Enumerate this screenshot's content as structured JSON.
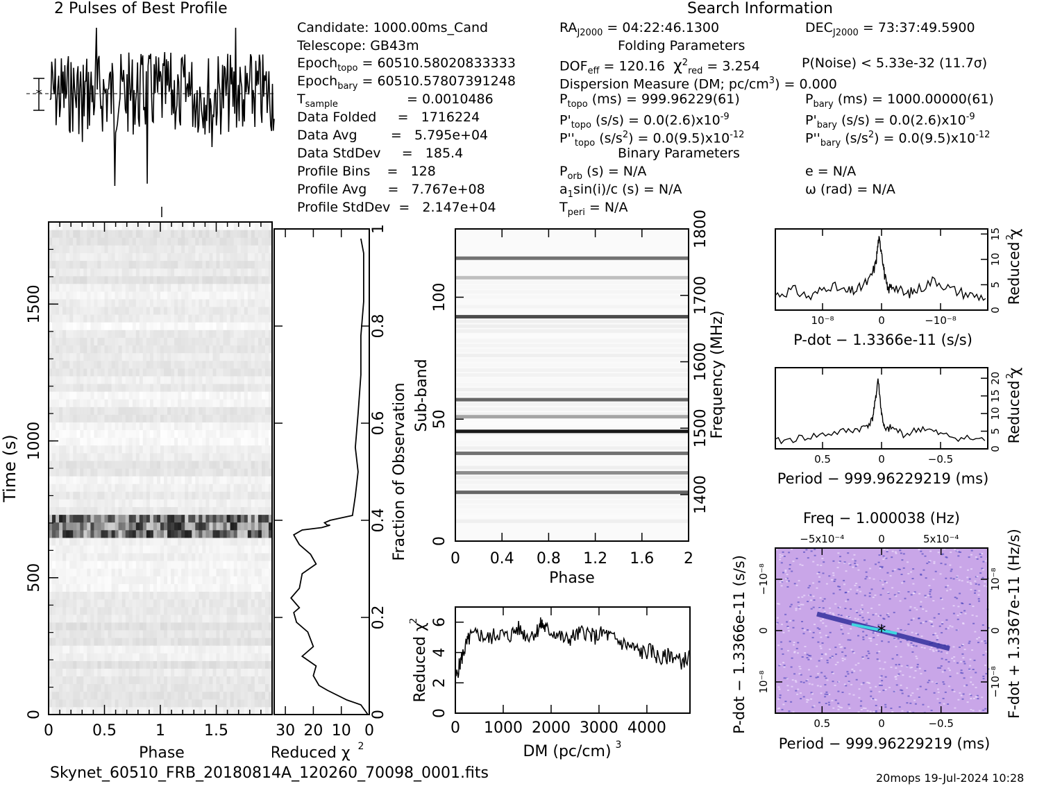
{
  "header": {
    "profile_title": "2 Pulses of Best Profile",
    "search_title": "Search Information",
    "candidate": "Candidate:  1000.00ms_Cand",
    "telescope": "Telescope:  GB43m",
    "epoch_topo_label": "Epoch",
    "epoch_topo_sub": "topo",
    "epoch_topo_val": "= 60510.58020833333",
    "epoch_bary_label": "Epoch",
    "epoch_bary_sub": "bary",
    "epoch_bary_val": "= 60510.57807391248",
    "tsample_label": "T",
    "tsample_sub": "sample",
    "tsample_val": "=   0.0010486",
    "data_folded": "Data Folded     =   1716224",
    "data_avg": "Data Avg        =   5.795e+04",
    "data_stddev": "Data StdDev     =   185.4",
    "profile_bins": "Profile Bins    =   128",
    "profile_avg": "Profile Avg     =   7.767e+08",
    "profile_stddev": "Profile StdDev  =   2.147e+04",
    "ra_label": "RA",
    "ra_sub": "J2000",
    "ra_val": " = 04:22:46.1300",
    "dec_label": "DEC",
    "dec_sub": "J2000",
    "dec_val": " = 73:37:49.5900",
    "folding_title": "Folding Parameters",
    "dof": "DOF",
    "dof_sub": "eff",
    "dof_val": " = 120.16",
    "chi_val": "χ",
    "chi_sub": "red",
    "chi_rest": " = 3.254",
    "pnoise": "P(Noise) < 5.33e-32   (11.7σ)",
    "dm_line": "Dispersion Measure (DM; pc/cm",
    "dm_line_end": ") = 0.000",
    "ptopo": "P",
    "ptopo_sub": "topo",
    "ptopo_val": " (ms) =  999.96229(61)",
    "pbary": "P",
    "pbary_sub": "bary",
    "pbary_val": " (ms) =  1000.00000(61)",
    "pdtopo": "P'",
    "pdtopo_sub": "topo",
    "pdtopo_val": " (s/s) = 0.0(2.6)x10",
    "pdtopo_exp": "-9",
    "pdbary": "P'",
    "pdbary_sub": "bary",
    "pdbary_val": " (s/s) = 0.0(2.6)x10",
    "pdbary_exp": "-9",
    "pddtopo": "P''",
    "pddtopo_sub": "topo",
    "pddtopo_val": " (s/s",
    "pddtopo_val2": ") = 0.0(9.5)x10",
    "pddtopo_exp": "-12",
    "pddbary": "P''",
    "pddbary_sub": "bary",
    "pddbary_val": " (s/s",
    "pddbary_val2": ") = 0.0(9.5)x10",
    "pddbary_exp": "-12",
    "binary_title": "Binary Parameters",
    "porb": "P",
    "porb_sub": "orb",
    "porb_val": " (s) = N/A",
    "ecc": "e = N/A",
    "a1": "a",
    "a1_sub": "1",
    "a1_val": "sin(i)/c (s) = N/A",
    "omega": "ω (rad) = N/A",
    "tperi": "T",
    "tperi_sub": "peri",
    "tperi_val": " = N/A"
  },
  "footer": {
    "filename": "Skynet_60510_FRB_20180814A_120260_70098_0001.fits",
    "stamp": "20mops  19-Jul-2024 10:28"
  },
  "chart_data": [
    {
      "id": "profile",
      "type": "line",
      "title": "2 Pulses of Best Profile",
      "xlim": [
        0,
        2
      ],
      "note": "noisy folded profile, two pulses"
    },
    {
      "id": "time_phase",
      "type": "heatmap",
      "xlabel": "Phase",
      "ylabel": "Time (s)",
      "xticks": [
        "0",
        "0.5",
        "1",
        "1.5"
      ],
      "yticks": [
        "0",
        "500",
        "1000",
        "1500"
      ],
      "xlim": [
        0,
        2
      ],
      "ylim": [
        0,
        1800
      ],
      "bright_band_time": 690
    },
    {
      "id": "time_chi",
      "type": "line",
      "xlabel": "Reduced χ",
      "ylabel": "Fraction of Observation",
      "xticks": [
        "30",
        "20",
        "10",
        "0"
      ],
      "yticks": [
        "0",
        "0.2",
        "0.4",
        "0.6",
        "0.8",
        "1"
      ],
      "xlim": [
        34,
        0
      ],
      "ylim": [
        0,
        1
      ],
      "x": [
        0.5,
        3,
        8,
        15,
        18,
        20,
        19,
        24,
        20,
        22,
        26,
        27,
        25,
        28,
        25,
        24,
        19,
        21,
        25,
        26,
        27,
        24,
        17,
        14,
        15,
        16,
        14,
        6,
        5,
        4,
        5,
        4,
        3,
        3,
        2,
        2,
        2,
        3
      ],
      "y": [
        0,
        0.02,
        0.03,
        0.05,
        0.06,
        0.08,
        0.1,
        0.12,
        0.14,
        0.17,
        0.19,
        0.21,
        0.22,
        0.24,
        0.26,
        0.29,
        0.31,
        0.33,
        0.35,
        0.36,
        0.37,
        0.38,
        0.385,
        0.39,
        0.39,
        0.395,
        0.4,
        0.41,
        0.45,
        0.5,
        0.55,
        0.62,
        0.7,
        0.78,
        0.85,
        0.9,
        0.95,
        0.98
      ]
    },
    {
      "id": "subband_phase",
      "type": "heatmap",
      "xlabel": "Phase",
      "ylabel": "Sub-band",
      "y2label": "Frequency (MHz)",
      "xticks": [
        "0",
        "0.4",
        "0.8",
        "1.2",
        "1.6",
        "2"
      ],
      "yticks": [
        "0",
        "50",
        "100"
      ],
      "y2ticks": [
        "1400",
        "1500",
        "1600",
        "1700",
        "1800"
      ],
      "xlim": [
        0,
        2
      ],
      "ylim": [
        0,
        128
      ],
      "bands": [
        {
          "sub": 116,
          "shade": 0.55
        },
        {
          "sub": 108,
          "shade": 0.25
        },
        {
          "sub": 92,
          "shade": 0.7
        },
        {
          "sub": 58,
          "shade": 0.6
        },
        {
          "sub": 51,
          "shade": 0.35
        },
        {
          "sub": 45,
          "shade": 0.9
        },
        {
          "sub": 36,
          "shade": 0.55
        },
        {
          "sub": 28,
          "shade": 0.45
        },
        {
          "sub": 20,
          "shade": 0.6
        }
      ]
    },
    {
      "id": "dm_chi",
      "type": "line",
      "xlabel": "DM (pc/cm",
      "xlabel_sup": "3",
      "xlabel_end": ")",
      "ylabel": "Reduced χ",
      "xticks": [
        "0",
        "1000",
        "2000",
        "3000",
        "4000"
      ],
      "yticks": [
        "0",
        "2",
        "4",
        "6"
      ],
      "xlim": [
        0,
        4900
      ],
      "ylim": [
        0,
        7
      ],
      "x": [
        0,
        100,
        200,
        300,
        500,
        700,
        900,
        1100,
        1300,
        1500,
        1700,
        1800,
        1900,
        2100,
        2300,
        2500,
        2700,
        2900,
        3100,
        3300,
        3500,
        3700,
        3900,
        4100,
        4300,
        4500,
        4700,
        4900
      ],
      "y": [
        2.2,
        3.3,
        4.3,
        5.0,
        5.2,
        4.9,
        5.3,
        5.0,
        5.6,
        5.1,
        5.4,
        5.9,
        5.5,
        5.3,
        4.8,
        5.1,
        5.4,
        5.0,
        5.3,
        4.9,
        4.6,
        4.3,
        4.0,
        4.1,
        3.5,
        3.9,
        3.4,
        3.7
      ]
    },
    {
      "id": "pdot_chi",
      "type": "line",
      "xlabel": "P-dot − 1.3366e-11 (s/s)",
      "ylabel": "Reduced χ",
      "xticks": [
        "10⁻⁸",
        "0",
        "−10⁻⁸"
      ],
      "yticks": [
        "0",
        "5",
        "10",
        "15"
      ],
      "xlim": [
        1.8e-08,
        -1.8e-08
      ],
      "ylim": [
        0,
        16
      ],
      "x": [
        1.8,
        1.5,
        1.2,
        0.9,
        0.6,
        0.4,
        0.2,
        0.1,
        0.05,
        0.0,
        -0.05,
        -0.1,
        -0.2,
        -0.4,
        -0.6,
        -0.9,
        -1.2,
        -1.5,
        -1.8
      ],
      "y": [
        3,
        4,
        2.5,
        5,
        3.5,
        4,
        6,
        9,
        14,
        12,
        7,
        4,
        5,
        3,
        4,
        6,
        4,
        3,
        2.5
      ]
    },
    {
      "id": "period_chi",
      "type": "line",
      "xlabel": "Period − 999.96229219 (ms)",
      "ylabel": "Reduced χ",
      "xticks": [
        "0.5",
        "0",
        "−0.5"
      ],
      "yticks": [
        "0",
        "5",
        "10",
        "15",
        "20"
      ],
      "xlim": [
        0.9,
        -0.9
      ],
      "ylim": [
        0,
        23
      ],
      "x": [
        0.9,
        0.7,
        0.5,
        0.3,
        0.15,
        0.08,
        0.05,
        0.03,
        0.0,
        -0.03,
        -0.08,
        -0.2,
        -0.35,
        -0.5,
        -0.7,
        -0.9
      ],
      "y": [
        2,
        3,
        4,
        5,
        6,
        8,
        14,
        20,
        10,
        5,
        6,
        4,
        6,
        4,
        3,
        2.5
      ]
    },
    {
      "id": "period_pdot",
      "type": "heatmap",
      "title": "Freq − 1.000038 (Hz)",
      "xlabel": "Period − 999.96229219 (ms)",
      "ylabel": "P-dot − 1.3366e-11 (s/s)",
      "y2label": "F-dot + 1.3367e-11 (Hz/s)",
      "xticks": [
        "0.5",
        "0",
        "−0.5"
      ],
      "x2ticks": [
        "−5x10⁻⁴",
        "0",
        "5x10⁻⁴"
      ],
      "yticks": [
        "10⁻⁸",
        "0",
        "−10⁻⁸"
      ],
      "y2ticks": [
        "−10⁻⁸",
        "0",
        "10⁻⁸"
      ]
    }
  ],
  "colors": {
    "ink": "#000000",
    "heat_light": "#f0f0f0",
    "surface_base": "#c9a6e8",
    "surface_dark": "#2a2a9a",
    "surface_cyan": "#3fd6e0"
  }
}
